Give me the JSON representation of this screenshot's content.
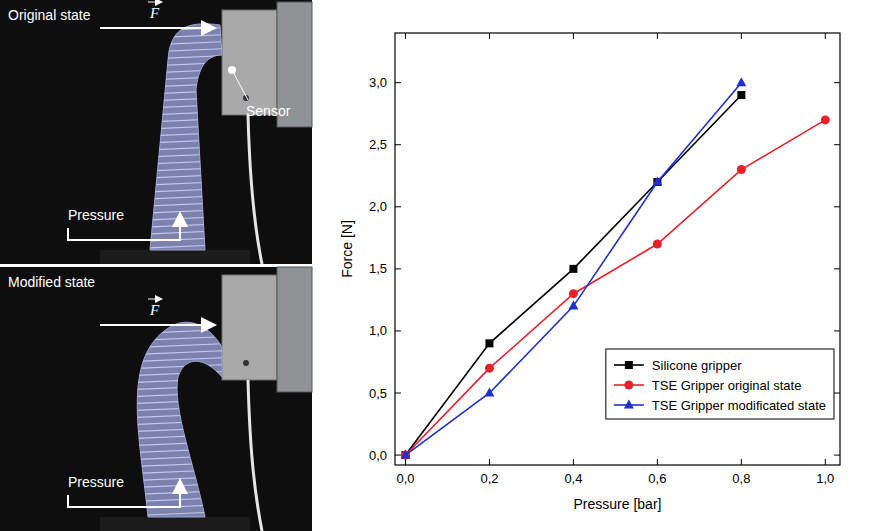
{
  "chart_data": {
    "type": "line",
    "x_label": "Pressure [bar]",
    "y_label": "Force [N]",
    "x": [
      0,
      0.2,
      0.4,
      0.6,
      0.8,
      1.0
    ],
    "series": [
      {
        "name": "Silicone gripper",
        "color": "#000000",
        "marker": "square",
        "values": [
          0,
          0.9,
          1.5,
          2.2,
          2.9,
          null
        ]
      },
      {
        "name": "TSE Gripper original state",
        "color": "#e8202a",
        "marker": "circle",
        "values": [
          0,
          0.7,
          1.3,
          1.7,
          2.3,
          2.7
        ]
      },
      {
        "name": "TSE Gripper modificated state",
        "color": "#1f2fd0",
        "marker": "triangle",
        "values": [
          0,
          0.5,
          1.2,
          2.2,
          3.0,
          null
        ]
      }
    ],
    "xlim": [
      -0.025,
      1.035
    ],
    "ylim": [
      -0.08,
      3.4
    ],
    "xticks": [
      {
        "value": 0,
        "label": "0,0"
      },
      {
        "value": 0.2,
        "label": "0,2"
      },
      {
        "value": 0.4,
        "label": "0,4"
      },
      {
        "value": 0.6,
        "label": "0,6"
      },
      {
        "value": 0.8,
        "label": "0,8"
      },
      {
        "value": 1.0,
        "label": "1,0"
      }
    ],
    "yticks": [
      {
        "value": 0,
        "label": "0,0"
      },
      {
        "value": 0.5,
        "label": "0,5"
      },
      {
        "value": 1.0,
        "label": "1,0"
      },
      {
        "value": 1.5,
        "label": "1,5"
      },
      {
        "value": 2.0,
        "label": "2,0"
      },
      {
        "value": 2.5,
        "label": "2,5"
      },
      {
        "value": 3.0,
        "label": "3,0"
      }
    ],
    "grid": false,
    "legend": "lower right"
  },
  "photos": [
    {
      "label": "Original state",
      "force": "F",
      "sensor": "Sensor",
      "pressure": "Pressure"
    },
    {
      "label": "Modified state",
      "force": "F",
      "pressure": "Pressure"
    }
  ]
}
